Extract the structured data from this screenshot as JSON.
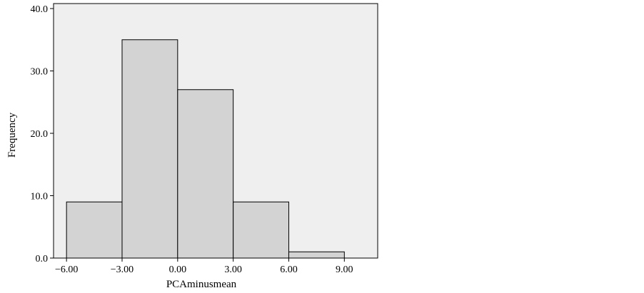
{
  "chart_data": {
    "type": "bar",
    "title": "",
    "xlabel": "PCAminusmean",
    "ylabel": "Frequency",
    "bins": [
      {
        "x0": -6.0,
        "x1": -3.0,
        "value": 9
      },
      {
        "x0": -3.0,
        "x1": 0.0,
        "value": 35
      },
      {
        "x0": 0.0,
        "x1": 3.0,
        "value": 27
      },
      {
        "x0": 3.0,
        "x1": 6.0,
        "value": 9
      },
      {
        "x0": 6.0,
        "x1": 9.0,
        "value": 1
      }
    ],
    "xlim": [
      -6.7,
      10.8
    ],
    "ylim": [
      0,
      40.8
    ],
    "xticks": [
      -6,
      -3,
      0,
      3,
      6,
      9
    ],
    "xtick_labels": [
      "−6.00",
      "−3.00",
      "0.00",
      "3.00",
      "6.00",
      "9.00"
    ],
    "yticks": [
      0,
      10,
      20,
      30,
      40
    ],
    "ytick_labels": [
      "0.0",
      "10.0",
      "20.0",
      "30.0",
      "40.0"
    ],
    "grid": false,
    "legend": "none",
    "colors": {
      "plot_background": "#efefef",
      "bar_fill": "#d3d3d3",
      "bar_stroke": "#000000",
      "axis": "#000000"
    }
  }
}
